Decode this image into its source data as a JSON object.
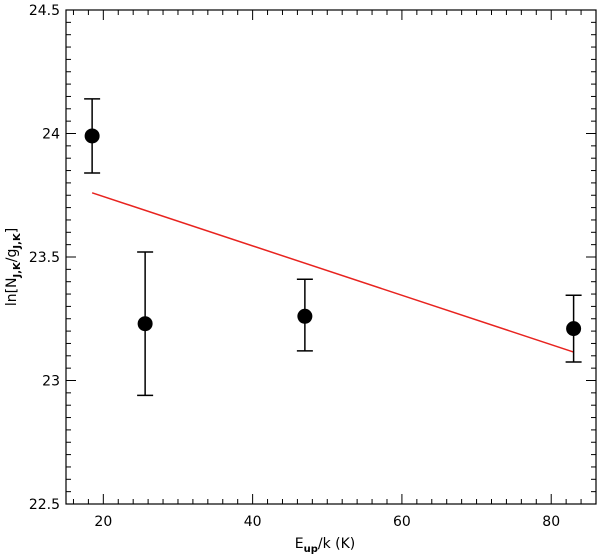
{
  "chart_data": {
    "type": "scatter",
    "xlim": [
      15,
      86
    ],
    "ylim": [
      22.5,
      24.5
    ],
    "xticks": [
      "20",
      "40",
      "60",
      "80"
    ],
    "xtick_values": [
      20,
      40,
      60,
      80
    ],
    "yticks": [
      "22.5",
      "23",
      "23.5",
      "24",
      "24.5"
    ],
    "ytick_values": [
      22.5,
      23,
      23.5,
      24,
      24.5
    ],
    "xlabel": {
      "main": "E",
      "sub": "up",
      "rest": "/k (K)"
    },
    "ylabel": {
      "pre": "ln[N",
      "sub1": "J,K",
      "mid": "/g",
      "sub2": "J,K",
      "post": "]"
    },
    "points": [
      {
        "x": 18.5,
        "y": 23.99,
        "err_low": 23.84,
        "err_high": 24.14
      },
      {
        "x": 25.6,
        "y": 23.23,
        "err_low": 22.94,
        "err_high": 23.52
      },
      {
        "x": 47.0,
        "y": 23.26,
        "err_low": 23.12,
        "err_high": 23.41
      },
      {
        "x": 83.0,
        "y": 23.21,
        "err_low": 23.075,
        "err_high": 23.345
      }
    ],
    "fit_line": {
      "x": [
        18.5,
        83.0
      ],
      "y": [
        23.76,
        23.115
      ],
      "color": "#e8231f"
    },
    "marker_color": "#000000",
    "grid": false
  }
}
